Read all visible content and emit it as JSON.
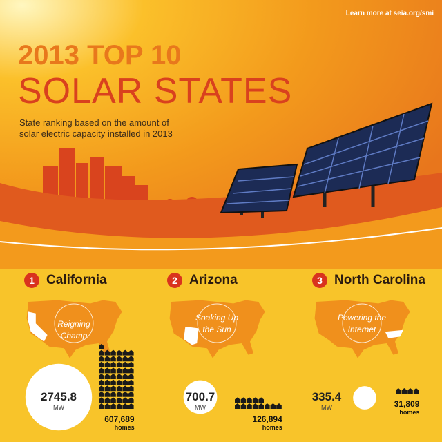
{
  "header": {
    "link": "Learn more at seia.org/smi",
    "title_line1": "2013 TOP 10",
    "title_line2": "SOLAR STATES",
    "subtitle": "State ranking based on the amount of solar electric capacity installed in 2013"
  },
  "states": [
    {
      "rank": 1,
      "name": "California",
      "tagline": "Reigning Champ",
      "capacity": 2745.8,
      "capacity_unit": "MW",
      "homes": {
        "value": 607689,
        "label": "607,689"
      },
      "homes_unit": "homes"
    },
    {
      "rank": 2,
      "name": "Arizona",
      "tagline": "Soaking Up the Sun",
      "capacity": 700.7,
      "capacity_unit": "MW",
      "homes": {
        "value": 126894,
        "label": "126,894"
      },
      "homes_unit": "homes"
    },
    {
      "rank": 3,
      "name": "North Carolina",
      "tagline": "Powering the Internet",
      "capacity": 335.4,
      "capacity_unit": "MW",
      "homes": {
        "value": 31809,
        "label": "31,809"
      },
      "homes_unit": "homes"
    }
  ]
}
